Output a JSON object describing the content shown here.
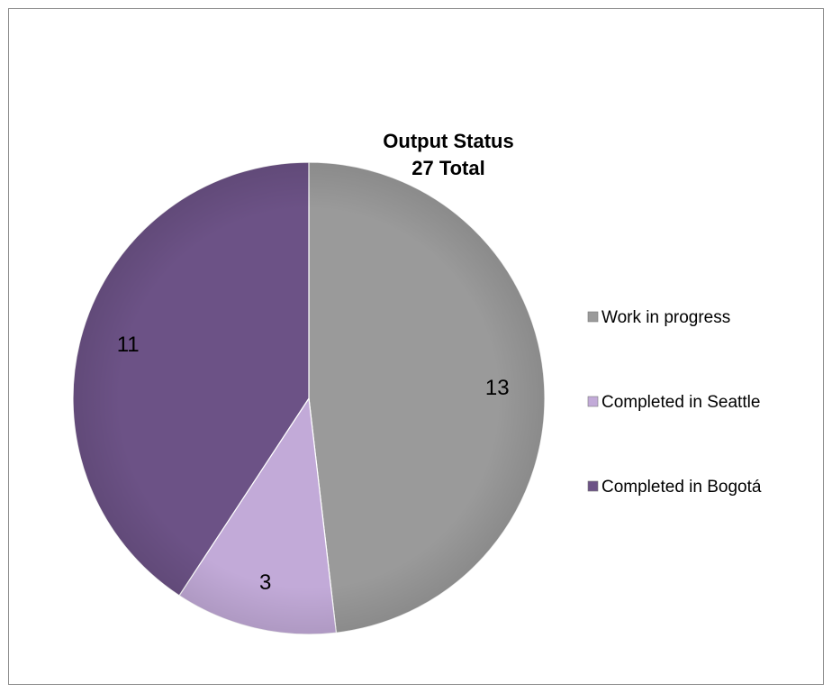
{
  "chart_data": {
    "type": "pie",
    "title": "Output Status",
    "subtitle": "27 Total",
    "categories": [
      "Work in progress",
      "Completed in Seattle",
      "Completed in Bogotá"
    ],
    "values": [
      13,
      3,
      11
    ],
    "colors": [
      "#9a9a9a",
      "#c2aad8",
      "#6c5286"
    ],
    "legend": "right",
    "start_angle": "12 o'clock",
    "direction": "clockwise"
  }
}
